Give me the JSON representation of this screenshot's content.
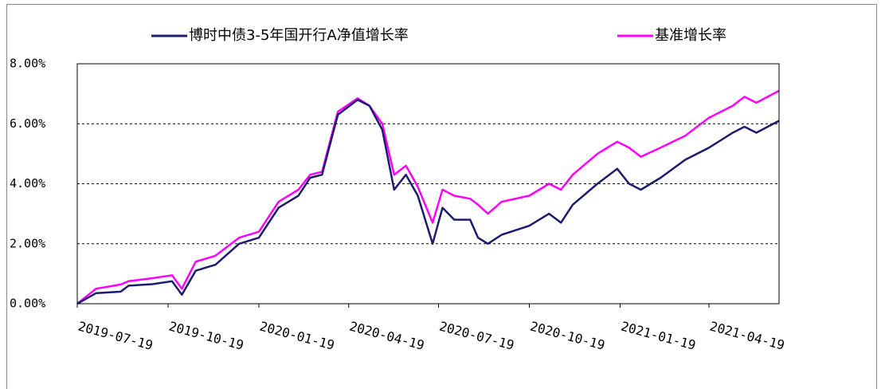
{
  "chart_data": {
    "type": "line",
    "x": [
      "2019-07-19",
      "2019-08-07",
      "2019-09-01",
      "2019-09-09",
      "2019-10-03",
      "2019-10-23",
      "2019-11-02",
      "2019-11-16",
      "2019-12-06",
      "2019-12-30",
      "2020-01-19",
      "2020-02-08",
      "2020-02-28",
      "2020-03-11",
      "2020-03-23",
      "2020-04-08",
      "2020-04-28",
      "2020-05-10",
      "2020-05-23",
      "2020-06-04",
      "2020-06-16",
      "2020-06-28",
      "2020-07-13",
      "2020-07-23",
      "2020-08-04",
      "2020-08-20",
      "2020-08-28",
      "2020-09-07",
      "2020-09-21",
      "2020-10-19",
      "2020-11-08",
      "2020-11-20",
      "2020-12-02",
      "2020-12-27",
      "2021-01-16",
      "2021-01-28",
      "2021-02-09",
      "2021-03-01",
      "2021-03-26",
      "2021-04-19",
      "2021-05-13",
      "2021-05-25",
      "2021-06-06",
      "2021-06-29"
    ],
    "series": [
      {
        "name": "博时中债3-5年国开行A净值增长率",
        "color": "#1c1c6e",
        "values": [
          0,
          0.35,
          0.4,
          0.6,
          0.65,
          0.75,
          0.3,
          1.1,
          1.3,
          2.0,
          2.2,
          3.2,
          3.6,
          4.2,
          4.3,
          6.3,
          6.8,
          6.6,
          5.8,
          3.8,
          4.3,
          3.6,
          2.0,
          3.2,
          2.8,
          2.8,
          2.2,
          2.0,
          2.3,
          2.6,
          3.0,
          2.7,
          3.3,
          4.0,
          4.5,
          4.0,
          3.8,
          4.2,
          4.8,
          5.2,
          5.7,
          5.9,
          5.7,
          6.1
        ]
      },
      {
        "name": "基准增长率",
        "color": "#ff00ff",
        "values": [
          0,
          0.5,
          0.64,
          0.75,
          0.85,
          0.95,
          0.5,
          1.4,
          1.6,
          2.2,
          2.4,
          3.4,
          3.8,
          4.3,
          4.4,
          6.4,
          6.85,
          6.6,
          6.0,
          4.3,
          4.6,
          3.9,
          2.7,
          3.8,
          3.6,
          3.5,
          3.3,
          3.0,
          3.4,
          3.6,
          4.0,
          3.8,
          4.3,
          5.0,
          5.4,
          5.2,
          4.9,
          5.2,
          5.6,
          6.2,
          6.6,
          6.9,
          6.7,
          7.1
        ]
      }
    ],
    "xlim": [
      "2019-07-19",
      "2021-06-29"
    ],
    "xticks": [
      "2019-07-19",
      "2019-10-19",
      "2020-01-19",
      "2020-04-19",
      "2020-07-19",
      "2020-10-19",
      "2021-01-19",
      "2021-04-19"
    ],
    "ylim": [
      0,
      8
    ],
    "yticks": [
      {
        "value": 0,
        "label": "0.00%"
      },
      {
        "value": 2,
        "label": "2.00%"
      },
      {
        "value": 4,
        "label": "4.00%"
      },
      {
        "value": 6,
        "label": "6.00%"
      },
      {
        "value": 8,
        "label": "8.00%"
      }
    ],
    "grid": true
  }
}
